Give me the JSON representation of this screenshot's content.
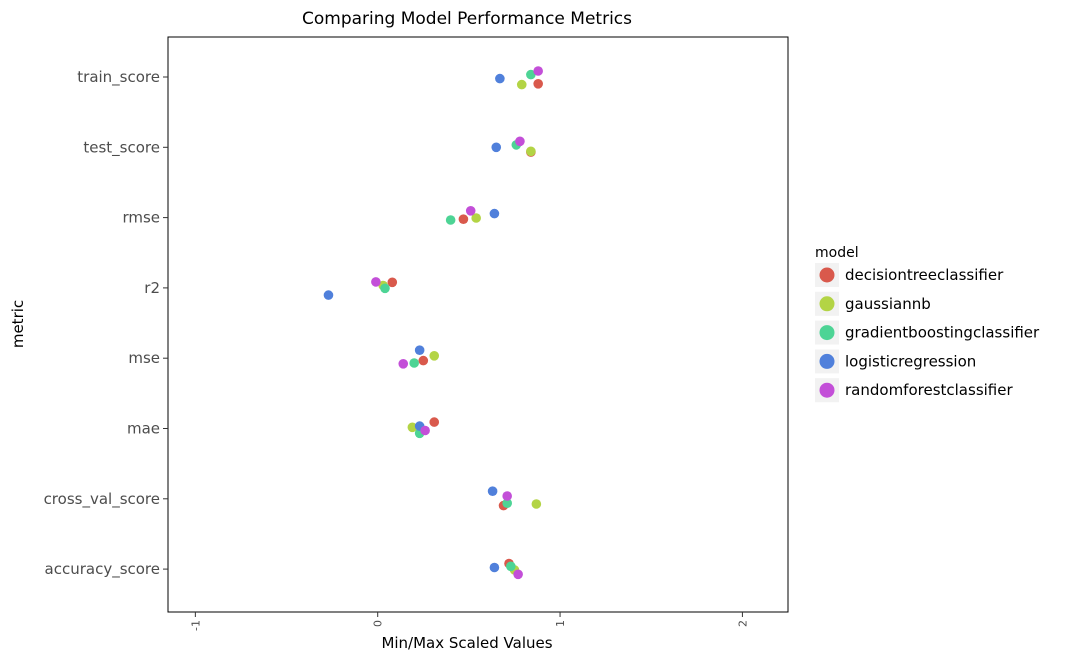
{
  "chart_data": {
    "type": "scatter",
    "title": "Comparing Model Performance Metrics",
    "xlabel": "Min/Max Scaled Values",
    "ylabel": "metric",
    "xlim": [
      -1.15,
      2.25
    ],
    "x_ticks": [
      -1,
      0,
      1,
      2
    ],
    "x_tick_labels": [
      "-1",
      "0",
      "1",
      "2"
    ],
    "categories": [
      "train_score",
      "test_score",
      "rmse",
      "r2",
      "mse",
      "mae",
      "cross_val_score",
      "accuracy_score"
    ],
    "grid": false,
    "legend": {
      "title": "model",
      "placement": "right"
    },
    "series": [
      {
        "name": "decisiontreeclassifier",
        "color": "#d9594c",
        "points": [
          {
            "category": "train_score",
            "x": 0.88,
            "jitter": -0.17
          },
          {
            "category": "test_score",
            "x": 0.84,
            "jitter": -0.12
          },
          {
            "category": "rmse",
            "x": 0.47,
            "jitter": -0.04
          },
          {
            "category": "r2",
            "x": 0.08,
            "jitter": 0.14
          },
          {
            "category": "mse",
            "x": 0.25,
            "jitter": -0.06
          },
          {
            "category": "mae",
            "x": 0.31,
            "jitter": 0.16
          },
          {
            "category": "cross_val_score",
            "x": 0.69,
            "jitter": -0.17
          },
          {
            "category": "accuracy_score",
            "x": 0.72,
            "jitter": 0.14
          }
        ]
      },
      {
        "name": "gaussiannb",
        "color": "#b3d445",
        "points": [
          {
            "category": "train_score",
            "x": 0.79,
            "jitter": -0.19
          },
          {
            "category": "test_score",
            "x": 0.84,
            "jitter": -0.1
          },
          {
            "category": "rmse",
            "x": 0.54,
            "jitter": -0.01
          },
          {
            "category": "r2",
            "x": 0.03,
            "jitter": 0.06
          },
          {
            "category": "mse",
            "x": 0.31,
            "jitter": 0.06
          },
          {
            "category": "mae",
            "x": 0.19,
            "jitter": 0.03
          },
          {
            "category": "cross_val_score",
            "x": 0.87,
            "jitter": -0.13
          },
          {
            "category": "accuracy_score",
            "x": 0.75,
            "jitter": -0.02
          }
        ]
      },
      {
        "name": "gradientboostingclassifier",
        "color": "#4dd495",
        "points": [
          {
            "category": "train_score",
            "x": 0.84,
            "jitter": 0.06
          },
          {
            "category": "test_score",
            "x": 0.76,
            "jitter": 0.06
          },
          {
            "category": "rmse",
            "x": 0.4,
            "jitter": -0.06
          },
          {
            "category": "r2",
            "x": 0.04,
            "jitter": -0.01
          },
          {
            "category": "mse",
            "x": 0.2,
            "jitter": -0.12
          },
          {
            "category": "mae",
            "x": 0.23,
            "jitter": -0.12
          },
          {
            "category": "cross_val_score",
            "x": 0.71,
            "jitter": -0.11
          },
          {
            "category": "accuracy_score",
            "x": 0.73,
            "jitter": 0.07
          }
        ]
      },
      {
        "name": "logisticregression",
        "color": "#5080db",
        "points": [
          {
            "category": "train_score",
            "x": 0.67,
            "jitter": -0.04
          },
          {
            "category": "test_score",
            "x": 0.65,
            "jitter": 0.0
          },
          {
            "category": "rmse",
            "x": 0.64,
            "jitter": 0.1
          },
          {
            "category": "r2",
            "x": -0.27,
            "jitter": -0.18
          },
          {
            "category": "mse",
            "x": 0.23,
            "jitter": 0.2
          },
          {
            "category": "mae",
            "x": 0.23,
            "jitter": 0.06
          },
          {
            "category": "cross_val_score",
            "x": 0.63,
            "jitter": 0.19
          },
          {
            "category": "accuracy_score",
            "x": 0.64,
            "jitter": 0.04
          }
        ]
      },
      {
        "name": "randomforestclassifier",
        "color": "#c34fd8",
        "points": [
          {
            "category": "train_score",
            "x": 0.88,
            "jitter": 0.15
          },
          {
            "category": "test_score",
            "x": 0.78,
            "jitter": 0.15
          },
          {
            "category": "rmse",
            "x": 0.51,
            "jitter": 0.17
          },
          {
            "category": "r2",
            "x": -0.01,
            "jitter": 0.15
          },
          {
            "category": "mse",
            "x": 0.14,
            "jitter": -0.14
          },
          {
            "category": "mae",
            "x": 0.26,
            "jitter": -0.05
          },
          {
            "category": "cross_val_score",
            "x": 0.71,
            "jitter": 0.07
          },
          {
            "category": "accuracy_score",
            "x": 0.77,
            "jitter": -0.13
          }
        ]
      }
    ]
  }
}
